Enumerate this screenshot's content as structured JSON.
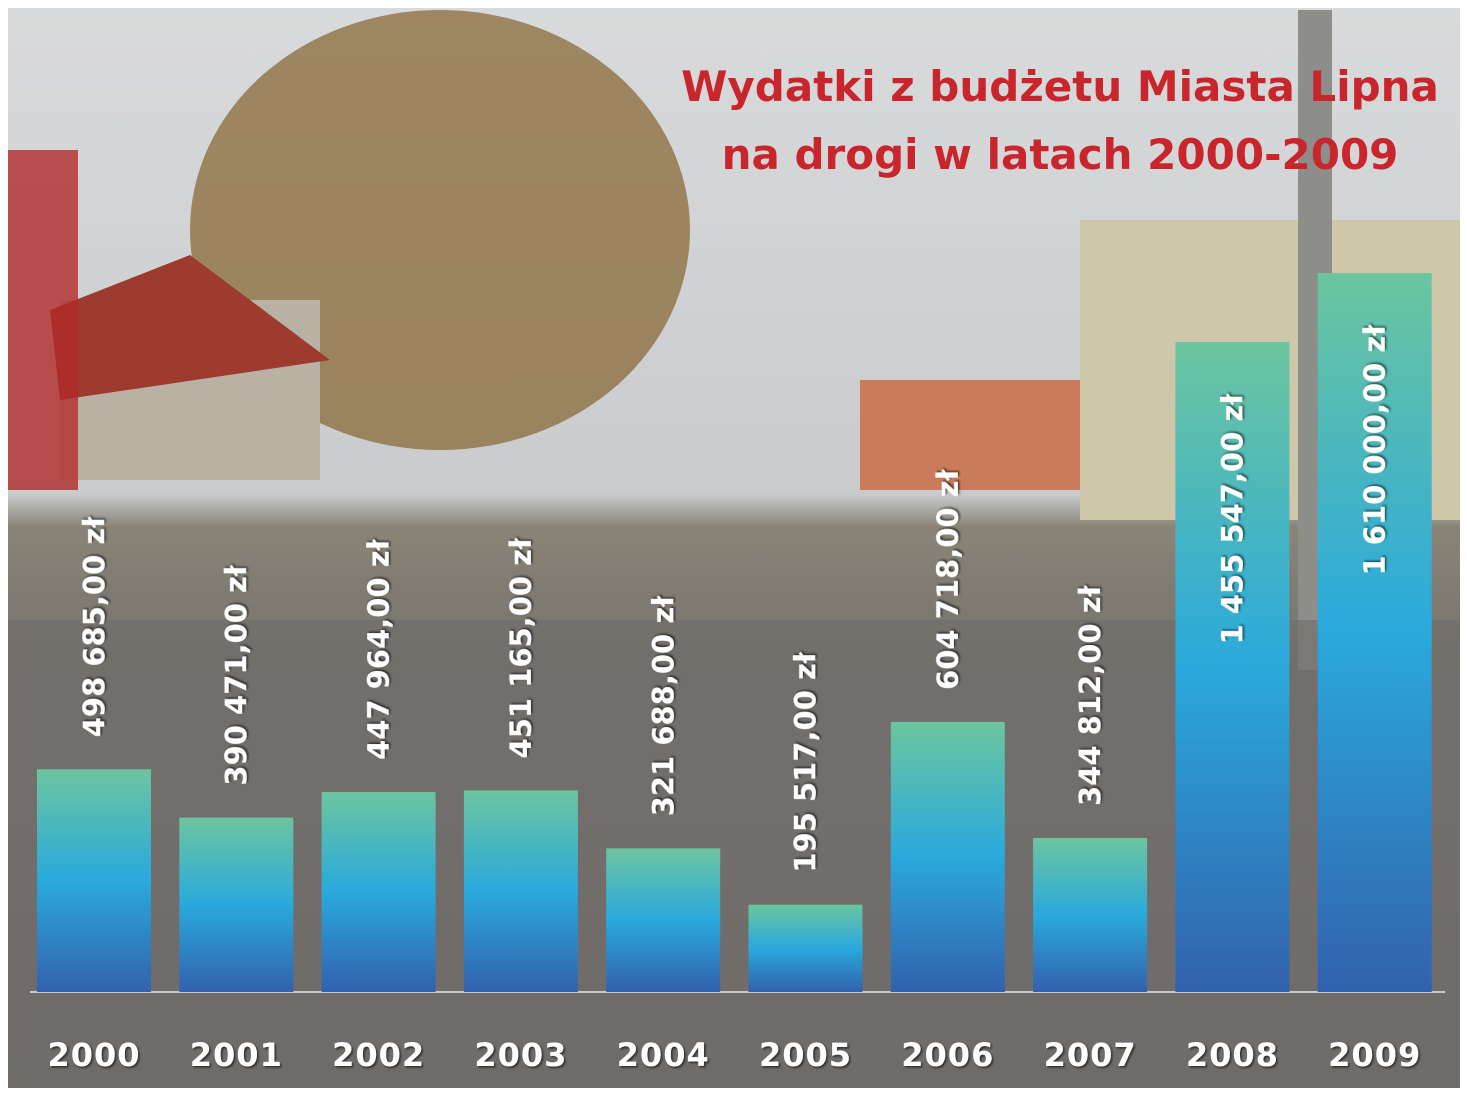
{
  "chart_data": {
    "type": "bar",
    "title": [
      "Wydatki z budżetu Miasta Lipna",
      "na drogi w latach 2000-2009"
    ],
    "categories": [
      "2000",
      "2001",
      "2002",
      "2003",
      "2004",
      "2005",
      "2006",
      "2007",
      "2008",
      "2009"
    ],
    "values": [
      498685,
      390471,
      447964,
      451165,
      321688,
      195517,
      604718,
      344812,
      1455547,
      1610000
    ],
    "value_labels": [
      "498 685,00 zł",
      "390 471,00 zł",
      "447 964,00 zł",
      "451 165,00 zł",
      "321 688,00 zł",
      "195 517,00 zł",
      "604 718,00 zł",
      "344 812,00 zł",
      "1 455 547,00 zł",
      "1 610 000,00 zł"
    ],
    "gradient": [
      "#6cc59f",
      "#2aa9dd",
      "#3261ad"
    ],
    "title_color": "#c8262c"
  }
}
